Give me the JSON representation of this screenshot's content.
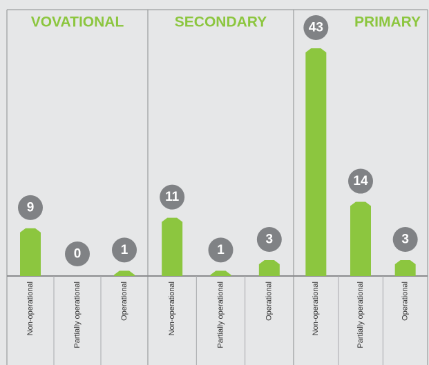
{
  "chart_data": [
    {
      "type": "bar",
      "title": "VOVATIONAL",
      "categories": [
        "Non-operational",
        "Partially operational",
        "Operational"
      ],
      "values": [
        9,
        0,
        1
      ],
      "color": "#8cc63f"
    },
    {
      "type": "bar",
      "title": "SECONDARY",
      "categories": [
        "Non-operational",
        "Partially operational",
        "Operational"
      ],
      "values": [
        11,
        1,
        3
      ],
      "color": "#8cc63f"
    },
    {
      "type": "bar",
      "title": "PRIMARY",
      "categories": [
        "Non-operational",
        "Partially operational",
        "Operational"
      ],
      "values": [
        43,
        14,
        3
      ],
      "color": "#8cc63f"
    }
  ]
}
